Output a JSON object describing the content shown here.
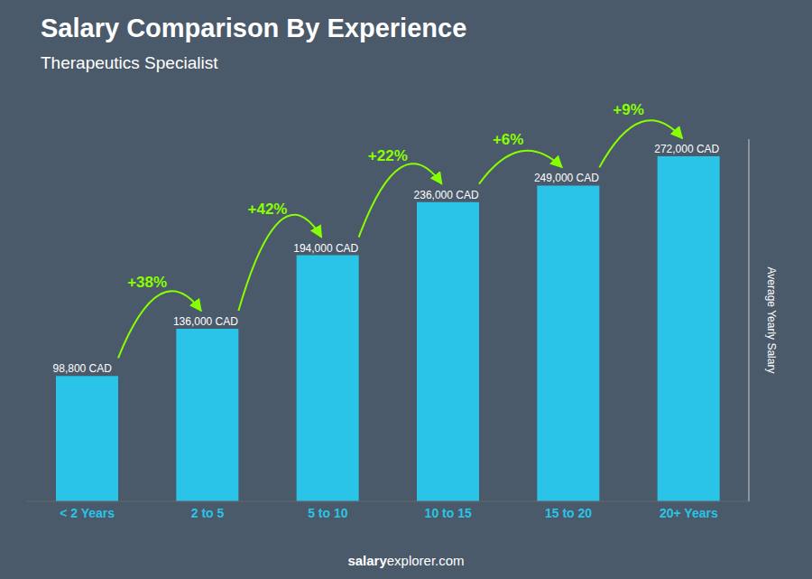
{
  "chart_data": {
    "type": "bar",
    "title": "Salary Comparison By Experience",
    "subtitle": "Therapeutics Specialist",
    "categories": [
      "< 2 Years",
      "2 to 5",
      "5 to 10",
      "10 to 15",
      "15 to 20",
      "20+ Years"
    ],
    "values": [
      98800,
      136000,
      194000,
      236000,
      249000,
      272000
    ],
    "value_labels": [
      "98,800 CAD",
      "136,000 CAD",
      "194,000 CAD",
      "236,000 CAD",
      "249,000 CAD",
      "272,000 CAD"
    ],
    "data_labels": true,
    "color": "#29c4e8",
    "ylabel": "Average Yearly Salary",
    "ylim": [
      0,
      285600
    ],
    "tick_labels": "x",
    "grid": false,
    "annotations": [
      {
        "text": "+38%",
        "color": "#88ff00"
      },
      {
        "text": "+42%",
        "color": "#88ff00"
      },
      {
        "text": "+22%",
        "color": "#88ff00"
      },
      {
        "text": "+6%",
        "color": "#88ff00"
      },
      {
        "text": "+9%",
        "color": "#88ff00"
      }
    ],
    "footer": [
      "salary",
      "explorer.com"
    ]
  }
}
